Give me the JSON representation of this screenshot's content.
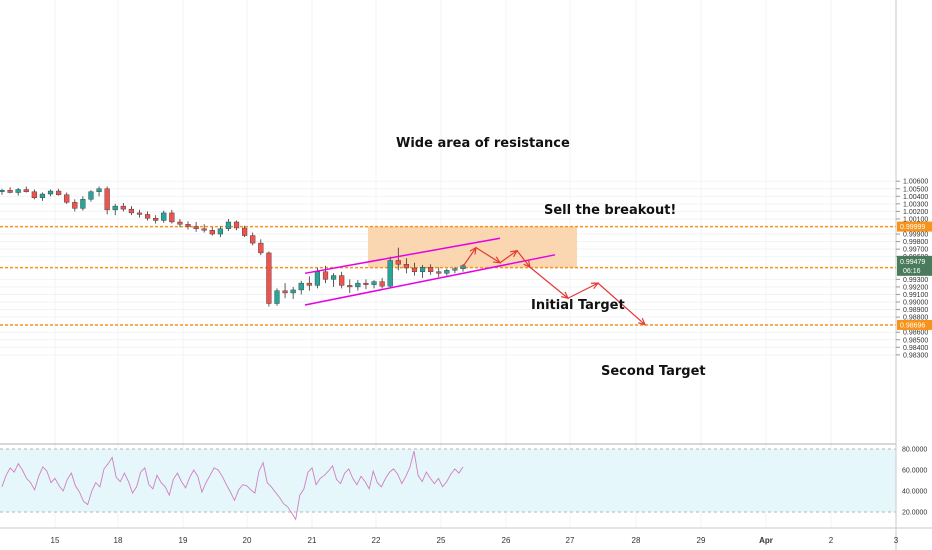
{
  "chart_data": {
    "type": "candlestick",
    "price_axis": {
      "ticks": [
        "1.00600",
        "1.00500",
        "1.00400",
        "1.00300",
        "1.00200",
        "1.00100",
        "0.99900",
        "0.99800",
        "0.99700",
        "0.99600",
        "0.99300",
        "0.99200",
        "0.99100",
        "0.99000",
        "0.98900",
        "0.98800",
        "0.98600",
        "0.98500",
        "0.98400",
        "0.98300"
      ],
      "ylim": [
        0.9825,
        1.0065
      ]
    },
    "time_axis": {
      "ticks": [
        "15",
        "18",
        "19",
        "20",
        "21",
        "22",
        "25",
        "26",
        "27",
        "28",
        "29",
        "Apr",
        "2",
        "3"
      ]
    },
    "levels": [
      {
        "price": 0.99999,
        "label": "0.99999",
        "color": "#f7931a"
      },
      {
        "price": 0.99455,
        "label": "0.99455",
        "color": "#f7931a"
      },
      {
        "price": 0.98696,
        "label": "0.98696",
        "color": "#f7931a"
      }
    ],
    "current_price": {
      "label": "0.99479",
      "countdown": "06:16",
      "color": "#4a7b5c"
    },
    "resistance_zone": {
      "from_price": 0.99455,
      "to_price": 1.0,
      "color": "#f9d3a8"
    },
    "channel": {
      "color": "#e600e6",
      "upper": [
        [
          0.9938,
          0.9955
        ],
        [
          0.9967,
          0.9984
        ]
      ],
      "lower": [
        [
          0.9896,
          0.9909
        ],
        [
          0.9942,
          0.9962
        ]
      ]
    },
    "annotations": [
      "Wide area of resistance",
      "Sell the breakout!",
      "Initial Target",
      "Second Target"
    ],
    "projection_path_prices": [
      0.9947,
      0.9972,
      0.9952,
      0.9968,
      0.9946,
      0.9905,
      0.9925,
      0.987
    ],
    "candle_color_up": "#26a69a",
    "candle_color_down": "#ef5350",
    "candles": [
      [
        1.0046,
        1.005,
        1.0042,
        1.0048
      ],
      [
        1.0048,
        1.0052,
        1.0044,
        1.0045
      ],
      [
        1.0045,
        1.0051,
        1.0041,
        1.0049
      ],
      [
        1.0049,
        1.0053,
        1.0045,
        1.0046
      ],
      [
        1.0046,
        1.0049,
        1.0036,
        1.0038
      ],
      [
        1.0038,
        1.0045,
        1.0034,
        1.0043
      ],
      [
        1.0043,
        1.0049,
        1.004,
        1.0047
      ],
      [
        1.0047,
        1.005,
        1.0041,
        1.0042
      ],
      [
        1.0042,
        1.0045,
        1.003,
        1.0032
      ],
      [
        1.0032,
        1.0036,
        1.002,
        1.0024
      ],
      [
        1.0024,
        1.004,
        1.0021,
        1.0036
      ],
      [
        1.0036,
        1.0048,
        1.0033,
        1.0046
      ],
      [
        1.0046,
        1.0053,
        1.004,
        1.005
      ],
      [
        1.005,
        1.0053,
        1.0016,
        1.0022
      ],
      [
        1.0022,
        1.003,
        1.0015,
        1.0027
      ],
      [
        1.0027,
        1.0031,
        1.002,
        1.0023
      ],
      [
        1.0023,
        1.0027,
        1.0015,
        1.0018
      ],
      [
        1.0018,
        1.0022,
        1.0012,
        1.0016
      ],
      [
        1.0016,
        1.002,
        1.0008,
        1.0011
      ],
      [
        1.0011,
        1.0015,
        1.0004,
        1.0008
      ],
      [
        1.0008,
        1.0021,
        1.0005,
        1.0018
      ],
      [
        1.0018,
        1.0022,
        1.0004,
        1.0006
      ],
      [
        1.0006,
        1.001,
        0.9999,
        1.0003
      ],
      [
        1.0003,
        1.0007,
        0.9996,
        1.0
      ],
      [
        1.0,
        1.0006,
        0.9993,
        0.9997
      ],
      [
        0.9997,
        1.0003,
        0.9992,
        0.9995
      ],
      [
        0.9995,
        0.9999,
        0.9988,
        0.999
      ],
      [
        0.999,
        1.0,
        0.9986,
        0.9997
      ],
      [
        0.9997,
        1.001,
        0.9994,
        1.0006
      ],
      [
        1.0006,
        1.0008,
        0.9995,
        0.9998
      ],
      [
        0.9998,
        1.0001,
        0.9986,
        0.9988
      ],
      [
        0.9988,
        0.9992,
        0.9975,
        0.9978
      ],
      [
        0.9978,
        0.9983,
        0.9962,
        0.9965
      ],
      [
        0.9965,
        0.9967,
        0.9894,
        0.9898
      ],
      [
        0.9898,
        0.9918,
        0.9895,
        0.9915
      ],
      [
        0.9915,
        0.9925,
        0.9905,
        0.9912
      ],
      [
        0.9912,
        0.992,
        0.9904,
        0.9916
      ],
      [
        0.9916,
        0.9928,
        0.991,
        0.9925
      ],
      [
        0.9925,
        0.9934,
        0.9915,
        0.9922
      ],
      [
        0.9922,
        0.9945,
        0.9918,
        0.994
      ],
      [
        0.994,
        0.9948,
        0.9925,
        0.993
      ],
      [
        0.993,
        0.9938,
        0.992,
        0.9935
      ],
      [
        0.9935,
        0.994,
        0.9918,
        0.9922
      ],
      [
        0.9922,
        0.993,
        0.9912,
        0.992
      ],
      [
        0.992,
        0.9929,
        0.9915,
        0.9925
      ],
      [
        0.9925,
        0.993,
        0.9917,
        0.9923
      ],
      [
        0.9923,
        0.9929,
        0.9918,
        0.9927
      ],
      [
        0.9927,
        0.9932,
        0.9918,
        0.9921
      ],
      [
        0.9921,
        0.996,
        0.9918,
        0.9955
      ],
      [
        0.9955,
        0.9972,
        0.9942,
        0.995
      ],
      [
        0.995,
        0.9958,
        0.9938,
        0.9945
      ],
      [
        0.9945,
        0.9952,
        0.9935,
        0.994
      ],
      [
        0.994,
        0.9949,
        0.9932,
        0.9946
      ],
      [
        0.9946,
        0.995,
        0.9936,
        0.994
      ],
      [
        0.994,
        0.9946,
        0.9933,
        0.9938
      ],
      [
        0.9938,
        0.9944,
        0.9935,
        0.9942
      ],
      [
        0.9942,
        0.9946,
        0.9938,
        0.9944
      ],
      [
        0.9944,
        0.995,
        0.994,
        0.9948
      ]
    ],
    "rsi": {
      "ticks": [
        "80.0000",
        "60.0000",
        "40.0000",
        "20.0000"
      ],
      "ylim": [
        10,
        90
      ],
      "band": [
        20,
        80
      ],
      "line_color": "#cf7fc0",
      "band_color": "#e6f7fb",
      "values": [
        44,
        55,
        62,
        58,
        66,
        60,
        52,
        48,
        41,
        54,
        63,
        59,
        48,
        52,
        45,
        40,
        51,
        57,
        45,
        39,
        30,
        27,
        40,
        48,
        44,
        61,
        66,
        72,
        53,
        49,
        57,
        49,
        38,
        44,
        58,
        62,
        46,
        42,
        55,
        48,
        44,
        36,
        51,
        57,
        49,
        43,
        53,
        60,
        54,
        39,
        48,
        55,
        62,
        60,
        54,
        46,
        39,
        31,
        41,
        46,
        45,
        41,
        38,
        59,
        67,
        48,
        44,
        39,
        34,
        28,
        25,
        19,
        13,
        36,
        42,
        58,
        62,
        46,
        52,
        55,
        59,
        64,
        51,
        47,
        57,
        61,
        52,
        46,
        54,
        49,
        42,
        59,
        48,
        44,
        52,
        58,
        61,
        56,
        47,
        54,
        63,
        78,
        55,
        49,
        58,
        52,
        47,
        52,
        44,
        49,
        56,
        61,
        57,
        63
      ]
    }
  }
}
